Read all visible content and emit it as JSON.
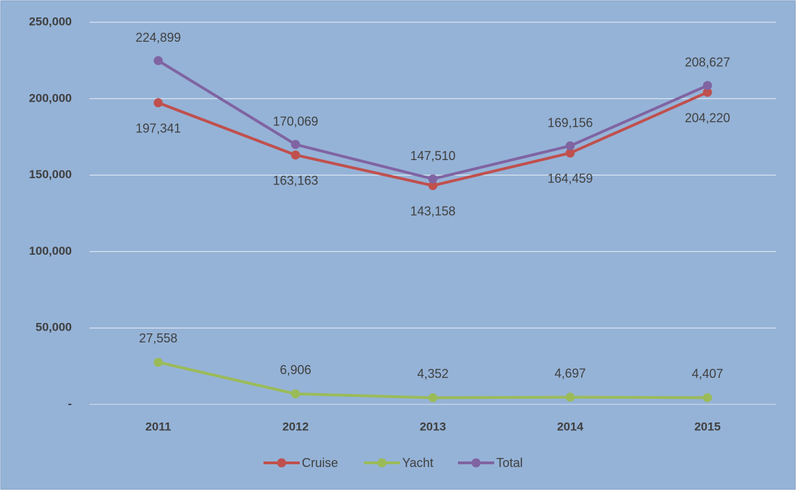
{
  "chart_data": {
    "type": "line",
    "categories": [
      "2011",
      "2012",
      "2013",
      "2014",
      "2015"
    ],
    "series": [
      {
        "name": "Cruise",
        "color": "#c0504d",
        "values": [
          197341,
          163163,
          143158,
          164459,
          204220
        ],
        "value_labels": [
          "197,341",
          "163,163",
          "143,158",
          "164,459",
          "204,220"
        ]
      },
      {
        "name": "Yacht",
        "color": "#9bbb59",
        "values": [
          27558,
          6906,
          4352,
          4697,
          4407
        ],
        "value_labels": [
          "27,558",
          "6,906",
          "4,352",
          "4,697",
          "4,407"
        ]
      },
      {
        "name": "Total",
        "color": "#8064a2",
        "values": [
          224899,
          170069,
          147510,
          169156,
          208627
        ],
        "value_labels": [
          "224,899",
          "170,069",
          "147,510",
          "169,156",
          "208,627"
        ]
      }
    ],
    "ylim": [
      0,
      250000
    ],
    "yticks": [
      {
        "value": 0,
        "label": "-"
      },
      {
        "value": 50000,
        "label": "50,000"
      },
      {
        "value": 100000,
        "label": "100,000"
      },
      {
        "value": 150000,
        "label": "150,000"
      },
      {
        "value": 200000,
        "label": "200,000"
      },
      {
        "value": 250000,
        "label": "250,000"
      }
    ],
    "grid": true,
    "legend": "bottom"
  }
}
